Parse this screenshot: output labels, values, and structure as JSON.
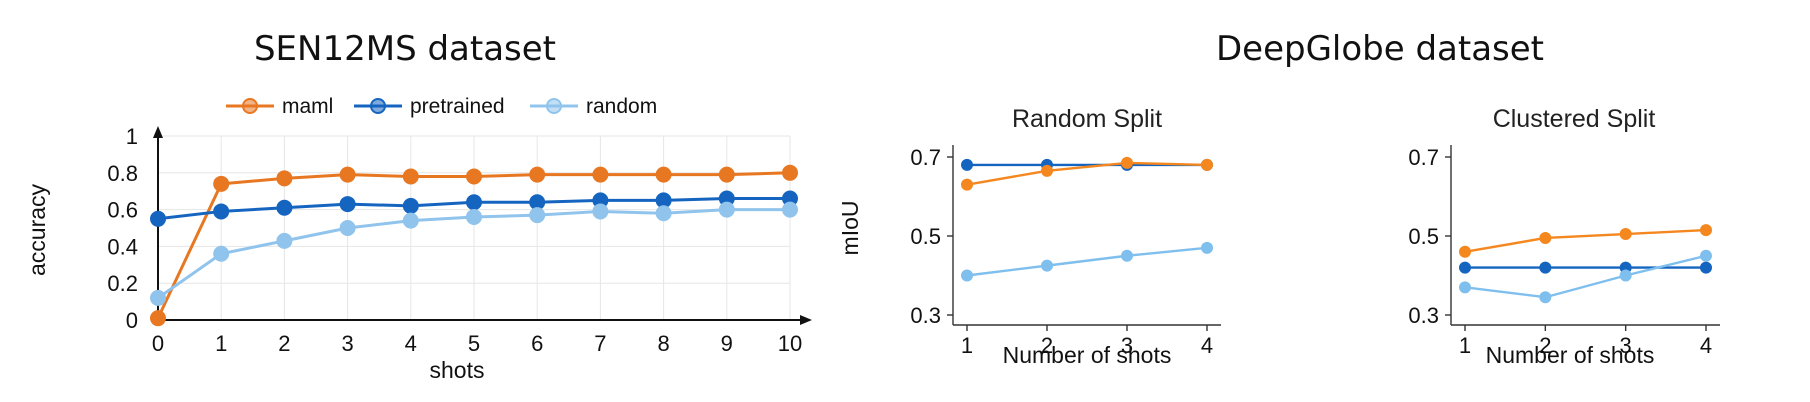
{
  "chart_data": [
    {
      "type": "line",
      "title": "SEN12MS dataset",
      "xlabel": "shots",
      "ylabel": "accuracy",
      "x": [
        0,
        1,
        2,
        3,
        4,
        5,
        6,
        7,
        8,
        9,
        10
      ],
      "xticks": [
        "0",
        "1",
        "2",
        "3",
        "4",
        "5",
        "6",
        "7",
        "8",
        "9",
        "10"
      ],
      "yticks": [
        "0",
        "0.2",
        "0.4",
        "0.6",
        "0.8",
        "1"
      ],
      "xlim": [
        0,
        10
      ],
      "ylim": [
        0,
        1
      ],
      "grid": true,
      "legend": "top",
      "series": [
        {
          "name": "maml",
          "color": "#e87722",
          "values": [
            0.01,
            0.74,
            0.77,
            0.79,
            0.78,
            0.78,
            0.79,
            0.79,
            0.79,
            0.79,
            0.8
          ]
        },
        {
          "name": "pretrained",
          "color": "#1565c0",
          "values": [
            0.55,
            0.59,
            0.61,
            0.63,
            0.62,
            0.64,
            0.64,
            0.65,
            0.65,
            0.66,
            0.66
          ]
        },
        {
          "name": "random",
          "color": "#90c4ec",
          "values": [
            0.12,
            0.36,
            0.43,
            0.5,
            0.54,
            0.56,
            0.57,
            0.59,
            0.58,
            0.6,
            0.6
          ]
        }
      ]
    },
    {
      "type": "line",
      "group_title": "DeepGlobe dataset",
      "title": "Random Split",
      "xlabel": "Number of shots",
      "ylabel": "mIoU",
      "x": [
        1,
        2,
        3,
        4
      ],
      "xticks": [
        "1",
        "2",
        "3",
        "4"
      ],
      "yticks": [
        "0.3",
        "0.5",
        "0.7"
      ],
      "xlim": [
        1,
        4
      ],
      "ylim": [
        0.3,
        0.7
      ],
      "grid": false,
      "series": [
        {
          "color": "#1565c0",
          "values": [
            0.68,
            0.68,
            0.68,
            0.68
          ]
        },
        {
          "color": "#f5871f",
          "values": [
            0.63,
            0.665,
            0.685,
            0.68
          ]
        },
        {
          "color": "#7fbfee",
          "values": [
            0.4,
            0.425,
            0.45,
            0.47
          ]
        }
      ]
    },
    {
      "type": "line",
      "title": "Clustered Split",
      "xlabel": "Number of shots",
      "ylabel": "",
      "x": [
        1,
        2,
        3,
        4
      ],
      "xticks": [
        "1",
        "2",
        "3",
        "4"
      ],
      "yticks": [
        "0.3",
        "0.5",
        "0.7"
      ],
      "xlim": [
        1,
        4
      ],
      "ylim": [
        0.3,
        0.7
      ],
      "grid": false,
      "series": [
        {
          "color": "#f5871f",
          "values": [
            0.46,
            0.495,
            0.505,
            0.515
          ]
        },
        {
          "color": "#1565c0",
          "values": [
            0.42,
            0.42,
            0.42,
            0.42
          ]
        },
        {
          "color": "#7fbfee",
          "values": [
            0.37,
            0.345,
            0.4,
            0.45
          ]
        }
      ]
    }
  ]
}
